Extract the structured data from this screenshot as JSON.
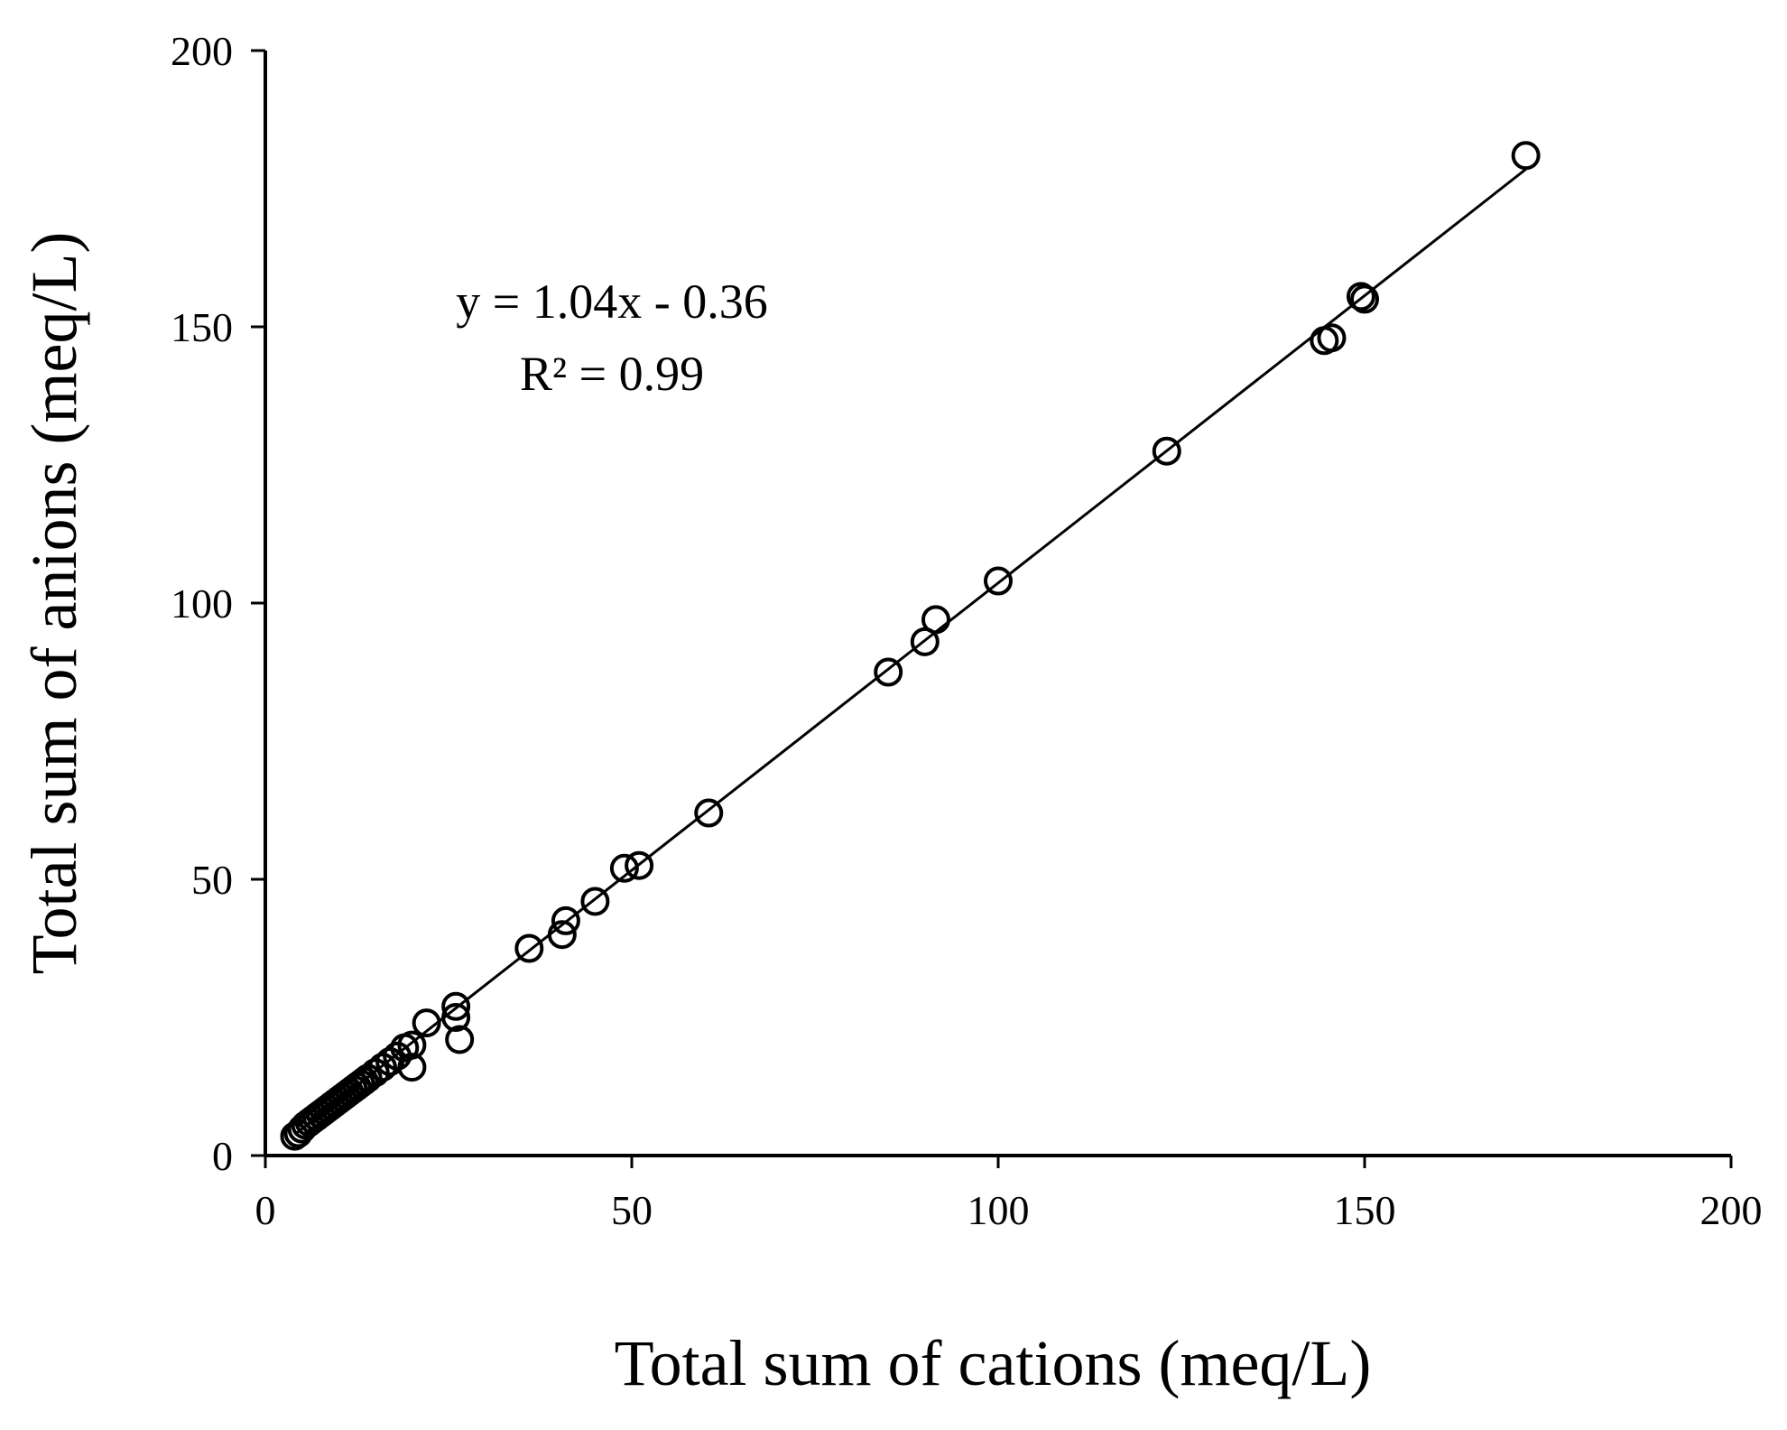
{
  "chart_data": {
    "type": "scatter",
    "xlabel": "Total sum of cations (meq/L)",
    "ylabel": "Total sum of anions (meq/L)",
    "xlim": [
      0,
      200
    ],
    "ylim": [
      0,
      200
    ],
    "xticks": [
      0,
      50,
      100,
      150,
      200
    ],
    "yticks": [
      0,
      50,
      100,
      150,
      200
    ],
    "grid": false,
    "marker": "open-circle",
    "color": "#000000",
    "trendline": {
      "slope": 1.04,
      "intercept": -0.36,
      "x_range": [
        4,
        172
      ],
      "equation_label": "y = 1.04x - 0.36",
      "r2_label": "R² = 0.99"
    },
    "series": [
      {
        "points": [
          [
            4,
            3.5
          ],
          [
            4.5,
            4
          ],
          [
            5,
            4.8
          ],
          [
            5.5,
            5.5
          ],
          [
            6,
            6
          ],
          [
            6.5,
            6.5
          ],
          [
            7,
            7
          ],
          [
            7.5,
            7.5
          ],
          [
            8,
            8
          ],
          [
            8.5,
            8.5
          ],
          [
            9,
            9
          ],
          [
            9.5,
            9.5
          ],
          [
            10,
            10
          ],
          [
            10.5,
            10.5
          ],
          [
            11,
            11
          ],
          [
            11.5,
            11.5
          ],
          [
            12,
            12
          ],
          [
            12.5,
            12.5
          ],
          [
            13,
            13
          ],
          [
            13.5,
            13.5
          ],
          [
            14,
            14
          ],
          [
            15,
            15
          ],
          [
            16,
            16
          ],
          [
            17,
            17
          ],
          [
            18,
            18
          ],
          [
            19,
            19.5
          ],
          [
            20,
            16
          ],
          [
            20,
            20
          ],
          [
            22,
            24
          ],
          [
            26,
            25
          ],
          [
            26.5,
            21
          ],
          [
            26,
            27
          ],
          [
            36,
            37.5
          ],
          [
            40.5,
            40
          ],
          [
            41,
            42.5
          ],
          [
            45,
            46
          ],
          [
            49,
            52
          ],
          [
            51,
            52.5
          ],
          [
            60.5,
            62
          ],
          [
            85,
            87.5
          ],
          [
            90,
            93
          ],
          [
            91.5,
            97
          ],
          [
            100,
            104
          ],
          [
            123,
            127.5
          ],
          [
            144.5,
            147.5
          ],
          [
            145.5,
            148
          ],
          [
            149.5,
            155.5
          ],
          [
            150,
            155
          ],
          [
            172,
            181
          ]
        ]
      }
    ]
  }
}
